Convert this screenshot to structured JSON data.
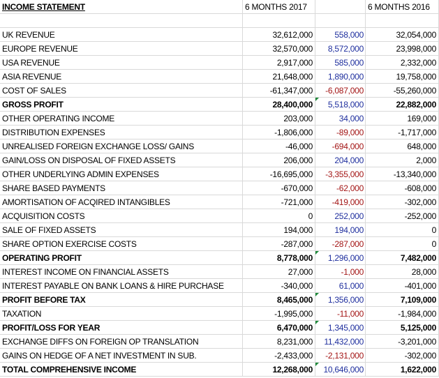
{
  "header": {
    "title": "INCOME STATEMENT",
    "col_2017": "6 MONTHS 2017",
    "col_2016": "6 MONTHS 2016"
  },
  "colors": {
    "positive_change": "#1f2f9e",
    "negative_change": "#a31515",
    "flag": "#1e8a3a"
  },
  "rows": [
    {
      "label": "UK REVENUE",
      "v2017": "32,612,000",
      "change": "558,000",
      "v2016": "32,054,000",
      "neg": false,
      "bold": false,
      "flag": false
    },
    {
      "label": "EUROPE REVENUE",
      "v2017": "32,570,000",
      "change": "8,572,000",
      "v2016": "23,998,000",
      "neg": false,
      "bold": false,
      "flag": false
    },
    {
      "label": "USA REVENUE",
      "v2017": "2,917,000",
      "change": "585,000",
      "v2016": "2,332,000",
      "neg": false,
      "bold": false,
      "flag": false
    },
    {
      "label": "ASIA REVENUE",
      "v2017": "21,648,000",
      "change": "1,890,000",
      "v2016": "19,758,000",
      "neg": false,
      "bold": false,
      "flag": false
    },
    {
      "label": "COST OF SALES",
      "v2017": "-61,347,000",
      "change": "-6,087,000",
      "v2016": "-55,260,000",
      "neg": true,
      "bold": false,
      "flag": false
    },
    {
      "label": "GROSS PROFIT",
      "v2017": "28,400,000",
      "change": "5,518,000",
      "v2016": "22,882,000",
      "neg": false,
      "bold": true,
      "flag": true
    },
    {
      "label": "OTHER OPERATING INCOME",
      "v2017": "203,000",
      "change": "34,000",
      "v2016": "169,000",
      "neg": false,
      "bold": false,
      "flag": false
    },
    {
      "label": "DISTRIBUTION EXPENSES",
      "v2017": "-1,806,000",
      "change": "-89,000",
      "v2016": "-1,717,000",
      "neg": true,
      "bold": false,
      "flag": false
    },
    {
      "label": "UNREALISED FOREIGN EXCHANGE LOSS/ GAINS",
      "v2017": "-46,000",
      "change": "-694,000",
      "v2016": "648,000",
      "neg": true,
      "bold": false,
      "flag": false
    },
    {
      "label": "GAIN/LOSS ON DISPOSAL OF FIXED ASSETS",
      "v2017": "206,000",
      "change": "204,000",
      "v2016": "2,000",
      "neg": false,
      "bold": false,
      "flag": false
    },
    {
      "label": "OTHER UNDERLYING ADMIN EXPENSES",
      "v2017": "-16,695,000",
      "change": "-3,355,000",
      "v2016": "-13,340,000",
      "neg": true,
      "bold": false,
      "flag": false
    },
    {
      "label": "SHARE BASED PAYMENTS",
      "v2017": "-670,000",
      "change": "-62,000",
      "v2016": "-608,000",
      "neg": true,
      "bold": false,
      "flag": false
    },
    {
      "label": "AMORTISATION OF ACQIRED INTANGIBLES",
      "v2017": "-721,000",
      "change": "-419,000",
      "v2016": "-302,000",
      "neg": true,
      "bold": false,
      "flag": false
    },
    {
      "label": "ACQUISITION COSTS",
      "v2017": "0",
      "change": "252,000",
      "v2016": "-252,000",
      "neg": false,
      "bold": false,
      "flag": false
    },
    {
      "label": "SALE OF FIXED ASSETS",
      "v2017": "194,000",
      "change": "194,000",
      "v2016": "0",
      "neg": false,
      "bold": false,
      "flag": false
    },
    {
      "label": "SHARE OPTION EXERCISE COSTS",
      "v2017": "-287,000",
      "change": "-287,000",
      "v2016": "0",
      "neg": true,
      "bold": false,
      "flag": false
    },
    {
      "label": "OPERATING PROFIT",
      "v2017": "8,778,000",
      "change": "1,296,000",
      "v2016": "7,482,000",
      "neg": false,
      "bold": true,
      "flag": true
    },
    {
      "label": "INTEREST INCOME ON FINANCIAL ASSETS",
      "v2017": "27,000",
      "change": "-1,000",
      "v2016": "28,000",
      "neg": true,
      "bold": false,
      "flag": false
    },
    {
      "label": "INTEREST PAYABLE ON BANK LOANS & HIRE PURCHASE",
      "v2017": "-340,000",
      "change": "61,000",
      "v2016": "-401,000",
      "neg": false,
      "bold": false,
      "flag": false
    },
    {
      "label": "PROFIT BEFORE TAX",
      "v2017": "8,465,000",
      "change": "1,356,000",
      "v2016": "7,109,000",
      "neg": false,
      "bold": true,
      "flag": true
    },
    {
      "label": "TAXATION",
      "v2017": "-1,995,000",
      "change": "-11,000",
      "v2016": "-1,984,000",
      "neg": true,
      "bold": false,
      "flag": false
    },
    {
      "label": "PROFIT/LOSS FOR YEAR",
      "v2017": "6,470,000",
      "change": "1,345,000",
      "v2016": "5,125,000",
      "neg": false,
      "bold": true,
      "flag": true
    },
    {
      "label": "EXCHANGE DIFFS ON FOREIGN OP TRANSLATION",
      "v2017": "8,231,000",
      "change": "11,432,000",
      "v2016": "-3,201,000",
      "neg": false,
      "bold": false,
      "flag": false
    },
    {
      "label": "GAINS ON HEDGE OF A NET INVESTMENT IN SUB.",
      "v2017": "-2,433,000",
      "change": "-2,131,000",
      "v2016": "-302,000",
      "neg": true,
      "bold": false,
      "flag": false
    },
    {
      "label": "TOTAL COMPREHENSIVE INCOME",
      "v2017": "12,268,000",
      "change": "10,646,000",
      "v2016": "1,622,000",
      "neg": false,
      "bold": true,
      "flag": true
    }
  ]
}
